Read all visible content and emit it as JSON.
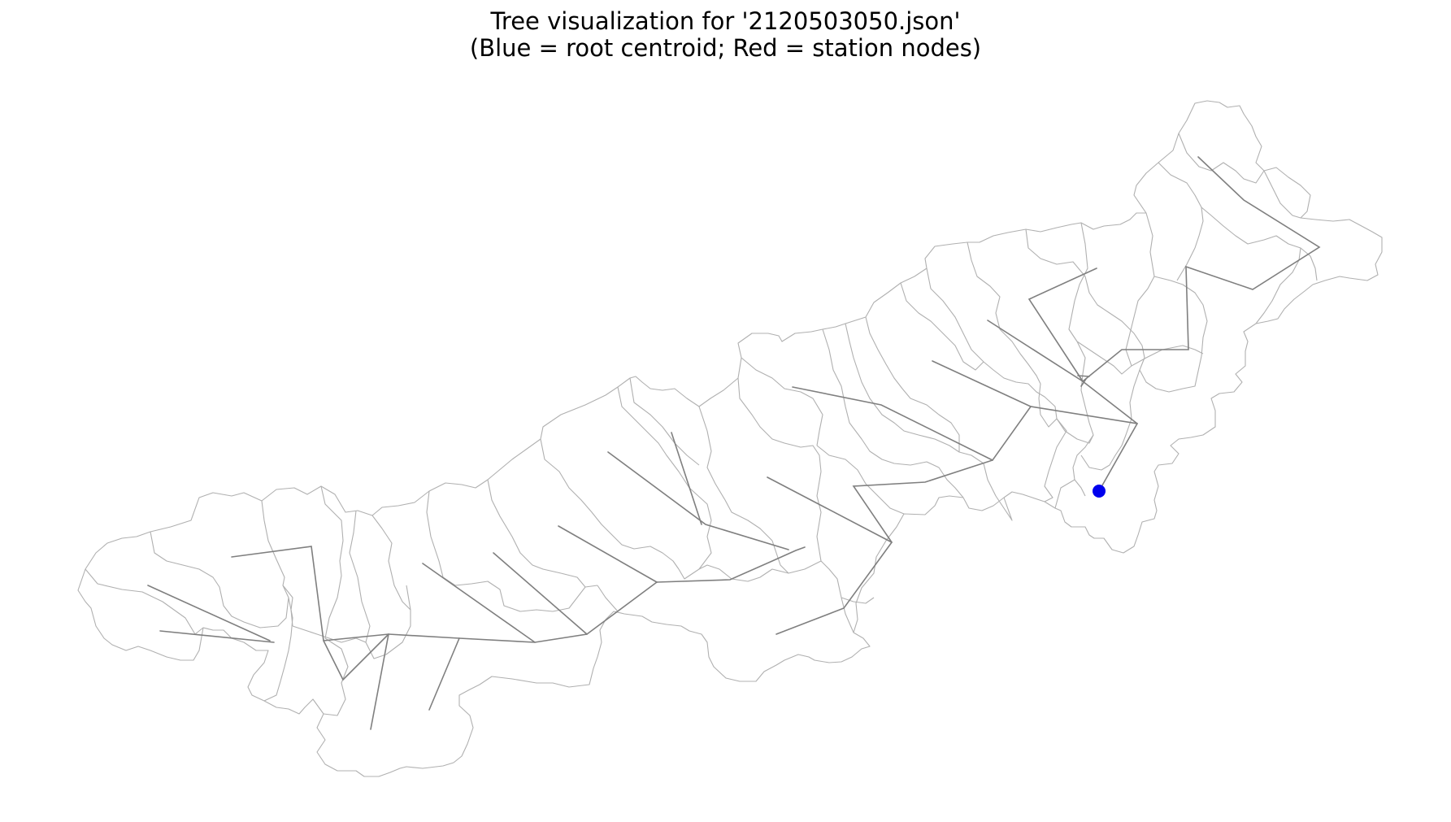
{
  "figure": {
    "title_line1": "Tree visualization for '2120503050.json'",
    "title_line2": "(Blue = root centroid; Red = station nodes)"
  },
  "colors": {
    "root_centroid": "#0000ee",
    "tree_edges": "#7f7f7f",
    "basin_boundaries": "#b0b0b0"
  },
  "tree": {
    "root": "root centroid",
    "station_nodes": []
  }
}
